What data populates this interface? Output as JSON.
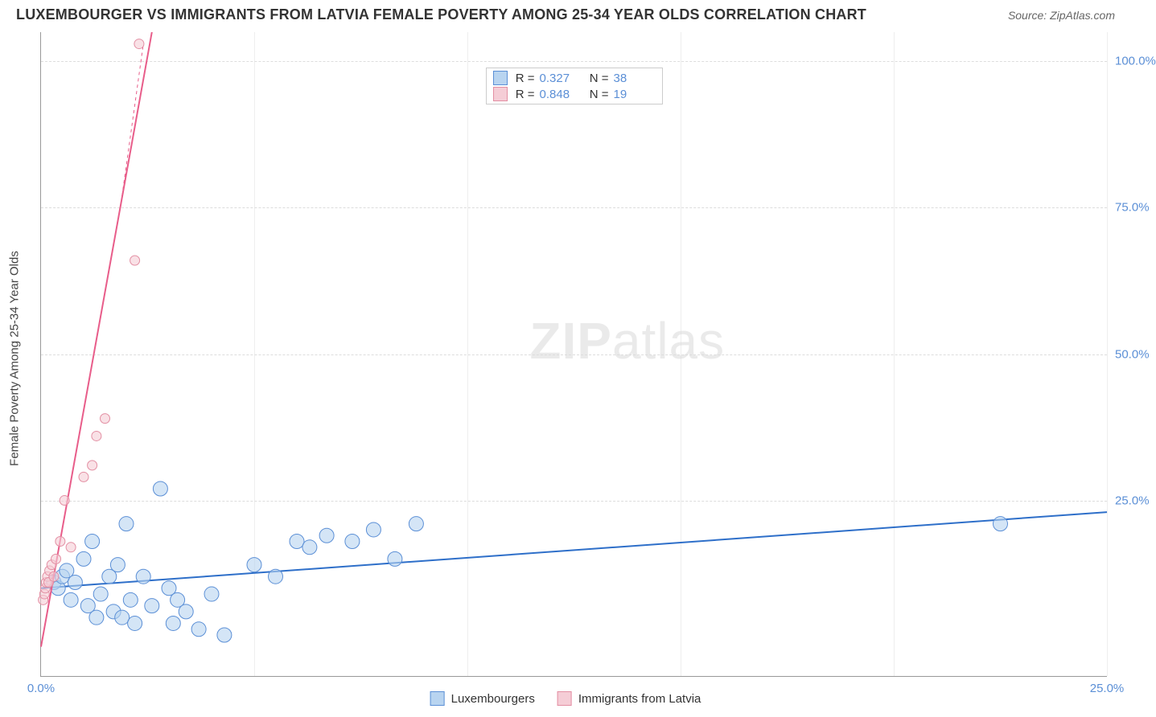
{
  "title": "LUXEMBOURGER VS IMMIGRANTS FROM LATVIA FEMALE POVERTY AMONG 25-34 YEAR OLDS CORRELATION CHART",
  "source": "Source: ZipAtlas.com",
  "watermark_bold": "ZIP",
  "watermark_light": "atlas",
  "chart": {
    "type": "scatter-with-trend",
    "xlim": [
      0,
      25
    ],
    "ylim": [
      -5,
      105
    ],
    "y_label": "Female Poverty Among 25-34 Year Olds",
    "y_ticks": [
      25,
      50,
      75,
      100
    ],
    "y_tick_labels": [
      "25.0%",
      "50.0%",
      "75.0%",
      "100.0%"
    ],
    "x_ticks": [
      0,
      5,
      10,
      15,
      20,
      25
    ],
    "x_tick_labels": [
      "0.0%",
      "",
      "",
      "",
      "",
      "25.0%"
    ],
    "background_color": "#ffffff",
    "grid_color": "#e0e0e0",
    "marker_radius": 9,
    "marker_radius_small": 6,
    "series": [
      {
        "name": "Luxembourgers",
        "color_fill": "#b8d4f0",
        "color_stroke": "#5b8fd6",
        "trend_color": "#2e6fc9",
        "trend_width": 2,
        "R": "0.327",
        "N": "38",
        "points": [
          [
            0.3,
            11
          ],
          [
            0.4,
            10
          ],
          [
            0.5,
            12
          ],
          [
            0.6,
            13
          ],
          [
            0.7,
            8
          ],
          [
            0.8,
            11
          ],
          [
            1.0,
            15
          ],
          [
            1.1,
            7
          ],
          [
            1.2,
            18
          ],
          [
            1.3,
            5
          ],
          [
            1.4,
            9
          ],
          [
            1.6,
            12
          ],
          [
            1.7,
            6
          ],
          [
            1.8,
            14
          ],
          [
            1.9,
            5
          ],
          [
            2.0,
            21
          ],
          [
            2.1,
            8
          ],
          [
            2.2,
            4
          ],
          [
            2.4,
            12
          ],
          [
            2.6,
            7
          ],
          [
            2.8,
            27
          ],
          [
            3.0,
            10
          ],
          [
            3.1,
            4
          ],
          [
            3.2,
            8
          ],
          [
            3.4,
            6
          ],
          [
            3.7,
            3
          ],
          [
            4.0,
            9
          ],
          [
            4.3,
            2
          ],
          [
            5.0,
            14
          ],
          [
            5.5,
            12
          ],
          [
            6.0,
            18
          ],
          [
            6.3,
            17
          ],
          [
            6.7,
            19
          ],
          [
            7.3,
            18
          ],
          [
            7.8,
            20
          ],
          [
            8.3,
            15
          ],
          [
            8.8,
            21
          ],
          [
            22.5,
            21
          ]
        ],
        "trend": {
          "x1": 0,
          "y1": 10,
          "x2": 25,
          "y2": 23
        }
      },
      {
        "name": "Immigrants from Latvia",
        "color_fill": "#f5cdd6",
        "color_stroke": "#e38fa3",
        "trend_color": "#e85d8a",
        "trend_width": 2,
        "R": "0.848",
        "N": "19",
        "points": [
          [
            0.05,
            8
          ],
          [
            0.08,
            9
          ],
          [
            0.1,
            10
          ],
          [
            0.12,
            11
          ],
          [
            0.15,
            12
          ],
          [
            0.18,
            11
          ],
          [
            0.2,
            13
          ],
          [
            0.25,
            14
          ],
          [
            0.3,
            12
          ],
          [
            0.35,
            15
          ],
          [
            0.45,
            18
          ],
          [
            0.55,
            25
          ],
          [
            0.7,
            17
          ],
          [
            1.0,
            29
          ],
          [
            1.2,
            31
          ],
          [
            1.3,
            36
          ],
          [
            1.5,
            39
          ],
          [
            2.2,
            66
          ],
          [
            2.3,
            103
          ]
        ],
        "trend": {
          "x1": 0,
          "y1": 0,
          "x2": 2.6,
          "y2": 105
        }
      }
    ]
  },
  "stats_legend": {
    "r_label": "R  =",
    "n_label": "N  ="
  },
  "series_legend": {
    "s1": "Luxembourgers",
    "s2": "Immigrants from Latvia"
  }
}
